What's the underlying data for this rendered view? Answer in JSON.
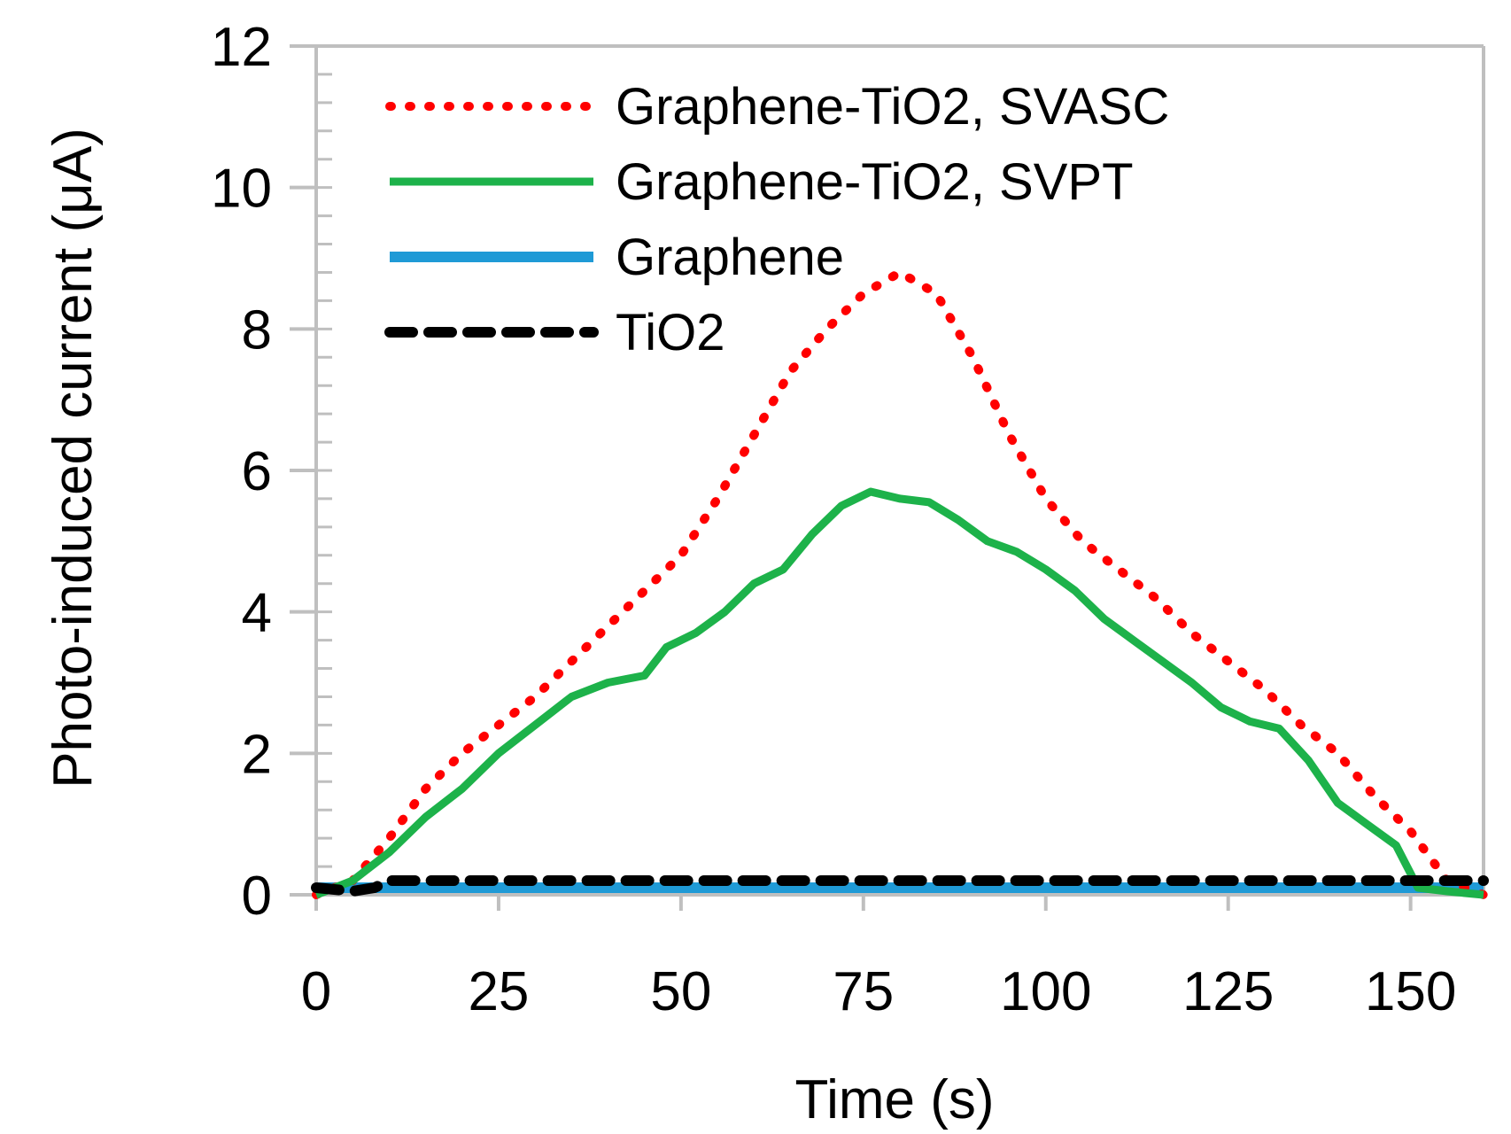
{
  "chart_data": {
    "type": "line",
    "title": "",
    "xlabel": "Time (s)",
    "ylabel": "Photo-induced current (μA)",
    "xlim": [
      0,
      160
    ],
    "ylim": [
      0,
      12
    ],
    "xticks": [
      0,
      25,
      50,
      75,
      100,
      125,
      150
    ],
    "yticks": [
      0,
      2,
      4,
      6,
      8,
      10,
      12
    ],
    "y_minor_step": 0.4,
    "grid": false,
    "legend_position": "top-left",
    "series": [
      {
        "name": "Graphene-TiO2, SVASC",
        "color": "#ff0000",
        "style": "dotted",
        "x": [
          0,
          5,
          10,
          15,
          20,
          25,
          30,
          35,
          40,
          45,
          50,
          55,
          60,
          65,
          70,
          75,
          80,
          85,
          90,
          95,
          100,
          105,
          110,
          115,
          120,
          125,
          130,
          135,
          140,
          145,
          150,
          155,
          160
        ],
        "y": [
          0,
          0.2,
          0.8,
          1.5,
          2.0,
          2.4,
          2.8,
          3.3,
          3.8,
          4.3,
          4.8,
          5.6,
          6.5,
          7.4,
          8.0,
          8.5,
          8.8,
          8.5,
          7.6,
          6.5,
          5.6,
          5.0,
          4.6,
          4.2,
          3.7,
          3.3,
          2.9,
          2.4,
          2.0,
          1.4,
          0.9,
          0.2,
          0
        ]
      },
      {
        "name": "Graphene-TiO2, SVPT",
        "color": "#1db24a",
        "style": "solid",
        "x": [
          0,
          5,
          10,
          15,
          20,
          25,
          30,
          35,
          40,
          45,
          48,
          52,
          56,
          60,
          64,
          68,
          72,
          76,
          80,
          84,
          88,
          92,
          96,
          100,
          104,
          108,
          112,
          116,
          120,
          124,
          128,
          132,
          136,
          140,
          144,
          148,
          151,
          155,
          160
        ],
        "y": [
          0,
          0.2,
          0.6,
          1.1,
          1.5,
          2.0,
          2.4,
          2.8,
          3.0,
          3.1,
          3.5,
          3.7,
          4.0,
          4.4,
          4.6,
          5.1,
          5.5,
          5.7,
          5.6,
          5.55,
          5.3,
          5.0,
          4.85,
          4.6,
          4.3,
          3.9,
          3.6,
          3.3,
          3.0,
          2.65,
          2.45,
          2.35,
          1.9,
          1.3,
          1.0,
          0.7,
          0.1,
          0.05,
          0
        ]
      },
      {
        "name": "Graphene",
        "color": "#1f9ad6",
        "style": "solid",
        "x": [
          0,
          160
        ],
        "y": [
          0.1,
          0.1
        ]
      },
      {
        "name": "TiO2",
        "color": "#000000",
        "style": "dashed",
        "x": [
          0,
          5,
          8,
          10,
          160
        ],
        "y": [
          0.1,
          0.05,
          0.1,
          0.2,
          0.2
        ]
      }
    ]
  }
}
